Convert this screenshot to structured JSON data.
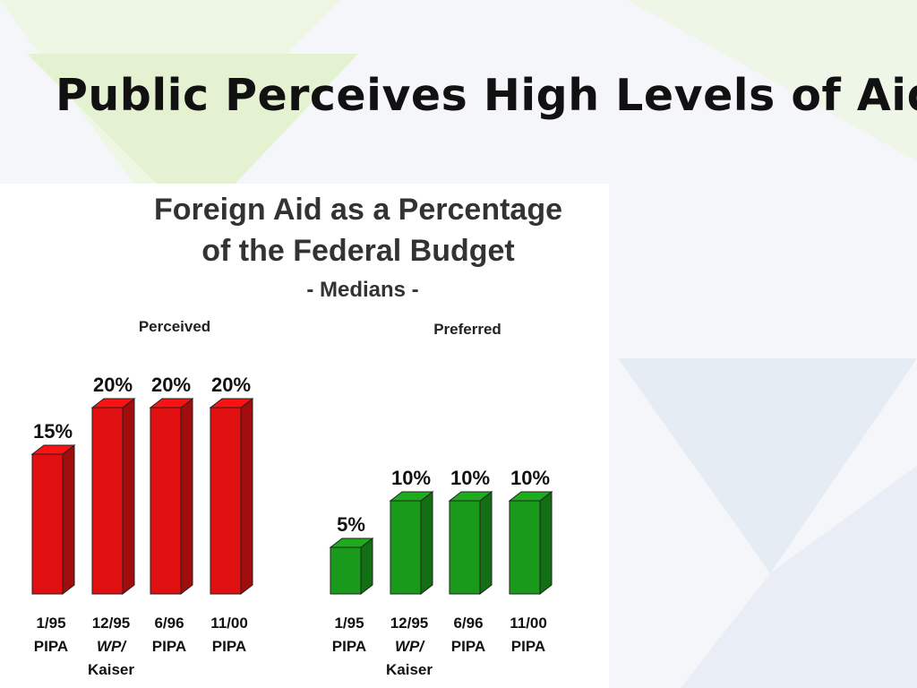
{
  "slide": {
    "title": "Public Perceives High Levels of Aid"
  },
  "chart_data": {
    "type": "bar",
    "title_lines": [
      "Foreign Aid as a Percentage",
      "of the Federal Budget"
    ],
    "subtitle": "- Medians -",
    "unit": "%",
    "ylim": [
      0,
      20
    ],
    "grid": false,
    "groups": [
      {
        "name": "Perceived",
        "color": "#e01010",
        "categories": [
          [
            "1/95",
            "PIPA"
          ],
          [
            "12/95",
            "WP/",
            "Kaiser"
          ],
          [
            "6/96",
            "PIPA"
          ],
          [
            "11/00",
            "PIPA"
          ]
        ],
        "values": [
          15,
          20,
          20,
          20
        ],
        "value_labels": [
          "15%",
          "20%",
          "20%",
          "20%"
        ]
      },
      {
        "name": "Preferred",
        "color": "#1a9a1a",
        "categories": [
          [
            "1/95",
            "PIPA"
          ],
          [
            "12/95",
            "WP/",
            "Kaiser"
          ],
          [
            "6/96",
            "PIPA"
          ],
          [
            "11/00",
            "PIPA"
          ]
        ],
        "values": [
          5,
          10,
          10,
          10
        ],
        "value_labels": [
          "5%",
          "10%",
          "10%",
          "10%"
        ]
      }
    ]
  }
}
